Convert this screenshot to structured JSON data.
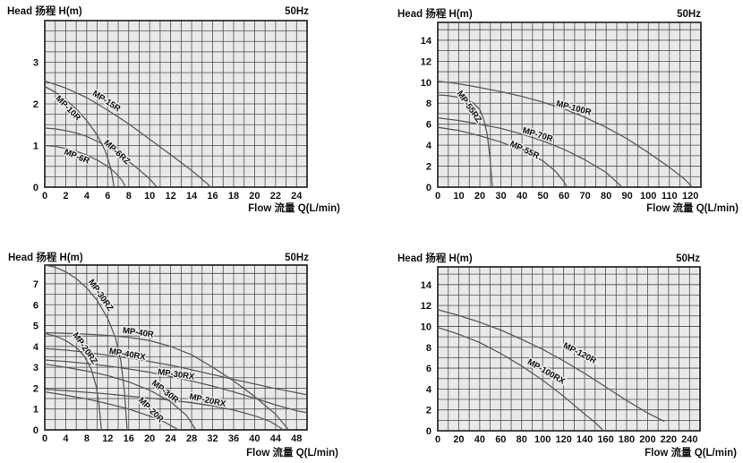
{
  "labels": {
    "head_title": "Head 扬程 H(m)",
    "frequency": "50Hz",
    "flow_title": "Flow 流量 Q(L/min)"
  },
  "colors": {
    "grid_bg": "#e9e9e9",
    "grid_line": "#4f4f4f",
    "border": "#1a1a1a",
    "curve": "#5a5a5a",
    "text": "#111111"
  },
  "chart_data": [
    {
      "type": "line",
      "title": "Head 扬程 H(m)",
      "freq_label": "50Hz",
      "xlabel": "Flow 流量 Q(L/min)",
      "ylabel": "H(m)",
      "xlim": [
        0,
        25
      ],
      "ylim": [
        0,
        4
      ],
      "x_minor": 1,
      "y_minor": 0.25,
      "x_ticks": [
        0,
        2,
        4,
        6,
        8,
        10,
        12,
        14,
        16,
        18,
        20,
        22,
        24
      ],
      "y_ticks": [
        0,
        1,
        2,
        3
      ],
      "grid": true,
      "legend_position": "on-curve",
      "series": [
        {
          "name": "MP-15R",
          "label_at": [
            4.5,
            2.22
          ],
          "label_angle": 33,
          "points": [
            [
              0,
              2.55
            ],
            [
              2,
              2.38
            ],
            [
              4,
              2.15
            ],
            [
              6,
              1.85
            ],
            [
              8,
              1.52
            ],
            [
              10,
              1.15
            ],
            [
              12,
              0.78
            ],
            [
              14,
              0.4
            ],
            [
              15.5,
              0.08
            ],
            [
              15.8,
              0
            ]
          ]
        },
        {
          "name": "MP-10R",
          "label_at": [
            1.0,
            2.12
          ],
          "label_angle": 45,
          "points": [
            [
              0,
              2.42
            ],
            [
              1,
              2.28
            ],
            [
              2,
              2.1
            ],
            [
              3,
              1.88
            ],
            [
              4,
              1.6
            ],
            [
              5,
              1.25
            ],
            [
              5.8,
              0.85
            ],
            [
              6.3,
              0.45
            ],
            [
              6.6,
              0
            ]
          ]
        },
        {
          "name": "MP-6RZ",
          "label_at": [
            5.6,
            1.05
          ],
          "label_angle": 42,
          "points": [
            [
              0,
              1.42
            ],
            [
              1,
              1.4
            ],
            [
              2,
              1.36
            ],
            [
              3,
              1.3
            ],
            [
              4,
              1.22
            ],
            [
              5,
              1.1
            ],
            [
              6,
              0.97
            ],
            [
              7,
              0.8
            ],
            [
              8,
              0.62
            ],
            [
              9,
              0.42
            ],
            [
              10,
              0.2
            ],
            [
              10.7,
              0
            ]
          ]
        },
        {
          "name": "MP-6R",
          "label_at": [
            1.8,
            0.8
          ],
          "label_angle": 22,
          "points": [
            [
              0,
              1.0
            ],
            [
              1,
              0.98
            ],
            [
              2,
              0.93
            ],
            [
              3,
              0.86
            ],
            [
              4,
              0.77
            ],
            [
              5,
              0.65
            ],
            [
              6,
              0.5
            ],
            [
              6.8,
              0.33
            ],
            [
              7.4,
              0.15
            ],
            [
              7.7,
              0
            ]
          ]
        }
      ]
    },
    {
      "type": "line",
      "title": "Head 扬程 H(m)",
      "freq_label": "50Hz",
      "xlabel": "Flow 流量 Q(L/min)",
      "ylabel": "H(m)",
      "xlim": [
        0,
        125
      ],
      "ylim": [
        0,
        15.7
      ],
      "x_minor": 5,
      "y_minor": 1,
      "x_ticks": [
        0,
        10,
        20,
        30,
        40,
        50,
        60,
        70,
        80,
        90,
        100,
        110,
        120
      ],
      "y_ticks": [
        0,
        2,
        4,
        6,
        8,
        10,
        12,
        14
      ],
      "grid": true,
      "legend_position": "on-curve",
      "series": [
        {
          "name": "MP-55RZ",
          "label_at": [
            9.0,
            8.95
          ],
          "label_angle": 55,
          "points": [
            [
              0,
              8.8
            ],
            [
              5,
              8.72
            ],
            [
              10,
              8.55
            ],
            [
              14,
              8.3
            ],
            [
              17,
              8.0
            ],
            [
              20,
              7.4
            ],
            [
              22,
              6.4
            ],
            [
              23.5,
              5.0
            ],
            [
              24.8,
              2.8
            ],
            [
              25.6,
              0.8
            ],
            [
              26,
              0
            ]
          ]
        },
        {
          "name": "MP-100R",
          "label_at": [
            56,
            7.75
          ],
          "label_angle": 15,
          "points": [
            [
              0,
              10.1
            ],
            [
              10,
              9.85
            ],
            [
              20,
              9.5
            ],
            [
              30,
              9.1
            ],
            [
              40,
              8.65
            ],
            [
              50,
              8.1
            ],
            [
              60,
              7.45
            ],
            [
              70,
              6.65
            ],
            [
              80,
              5.7
            ],
            [
              90,
              4.6
            ],
            [
              100,
              3.3
            ],
            [
              110,
              1.9
            ],
            [
              117,
              0.8
            ],
            [
              121,
              0
            ]
          ]
        },
        {
          "name": "MP-70R",
          "label_at": [
            40,
            5.2
          ],
          "label_angle": 17,
          "points": [
            [
              0,
              6.6
            ],
            [
              10,
              6.35
            ],
            [
              20,
              6.0
            ],
            [
              30,
              5.6
            ],
            [
              40,
              5.05
            ],
            [
              50,
              4.4
            ],
            [
              60,
              3.6
            ],
            [
              70,
              2.6
            ],
            [
              80,
              1.4
            ],
            [
              86,
              0.3
            ],
            [
              87.5,
              0
            ]
          ]
        },
        {
          "name": "MP-55R",
          "label_at": [
            34,
            3.95
          ],
          "label_angle": 25,
          "points": [
            [
              0,
              5.7
            ],
            [
              10,
              5.4
            ],
            [
              20,
              4.9
            ],
            [
              30,
              4.3
            ],
            [
              40,
              3.5
            ],
            [
              50,
              2.5
            ],
            [
              56,
              1.5
            ],
            [
              60,
              0.5
            ],
            [
              61.5,
              0
            ]
          ]
        }
      ]
    },
    {
      "type": "line",
      "title": "Head 扬程 H(m)",
      "freq_label": "50Hz",
      "xlabel": "Flow 流量 Q(L/min)",
      "ylabel": "H(m)",
      "xlim": [
        0,
        50
      ],
      "ylim": [
        0,
        7.9
      ],
      "x_minor": 2,
      "y_minor": 0.5,
      "x_ticks": [
        0,
        4,
        8,
        12,
        16,
        20,
        24,
        28,
        32,
        36,
        40,
        44,
        48
      ],
      "y_ticks": [
        0,
        1,
        2,
        3,
        4,
        5,
        6,
        7
      ],
      "grid": true,
      "legend_position": "on-curve",
      "series": [
        {
          "name": "MP-30RZ",
          "label_at": [
            8.3,
            7.1
          ],
          "label_angle": 55,
          "points": [
            [
              0,
              7.9
            ],
            [
              2,
              7.8
            ],
            [
              4,
              7.58
            ],
            [
              6,
              7.25
            ],
            [
              8,
              6.8
            ],
            [
              10,
              6.2
            ],
            [
              12,
              5.35
            ],
            [
              13.5,
              4.4
            ],
            [
              14.5,
              3.3
            ],
            [
              15.2,
              1.8
            ],
            [
              15.7,
              0
            ]
          ]
        },
        {
          "name": "MP-20RZ",
          "label_at": [
            5.3,
            4.55
          ],
          "label_angle": 55,
          "points": [
            [
              0,
              4.62
            ],
            [
              2,
              4.5
            ],
            [
              4,
              4.28
            ],
            [
              6,
              3.95
            ],
            [
              7.5,
              3.55
            ],
            [
              8.8,
              2.95
            ],
            [
              9.8,
              2.1
            ],
            [
              10.4,
              1.1
            ],
            [
              10.8,
              0
            ]
          ]
        },
        {
          "name": "MP-40R",
          "label_at": [
            14.8,
            4.65
          ],
          "label_angle": 8,
          "points": [
            [
              0,
              4.66
            ],
            [
              4,
              4.63
            ],
            [
              8,
              4.59
            ],
            [
              12,
              4.53
            ],
            [
              16,
              4.44
            ],
            [
              20,
              4.28
            ],
            [
              24,
              4.0
            ],
            [
              28,
              3.6
            ],
            [
              32,
              3.0
            ],
            [
              36,
              2.35
            ],
            [
              40,
              1.6
            ],
            [
              44,
              0.75
            ],
            [
              46.5,
              0
            ]
          ]
        },
        {
          "name": "MP-40RX",
          "label_at": [
            12.2,
            3.66
          ],
          "label_angle": 10,
          "points": [
            [
              0,
              3.9
            ],
            [
              4,
              3.82
            ],
            [
              8,
              3.72
            ],
            [
              12,
              3.58
            ],
            [
              16,
              3.44
            ],
            [
              20,
              3.28
            ],
            [
              24,
              3.1
            ],
            [
              28,
              2.88
            ],
            [
              32,
              2.65
            ],
            [
              36,
              2.42
            ],
            [
              40,
              2.2
            ],
            [
              44,
              1.98
            ],
            [
              48,
              1.78
            ],
            [
              50,
              1.68
            ]
          ]
        },
        {
          "name": "MP-30RX",
          "label_at": [
            21.5,
            2.66
          ],
          "label_angle": 8,
          "points": [
            [
              0,
              3.35
            ],
            [
              4,
              3.28
            ],
            [
              8,
              3.18
            ],
            [
              12,
              3.06
            ],
            [
              16,
              2.92
            ],
            [
              20,
              2.76
            ],
            [
              24,
              2.56
            ],
            [
              28,
              2.34
            ],
            [
              32,
              2.1
            ],
            [
              36,
              1.82
            ],
            [
              40,
              1.52
            ],
            [
              44,
              1.2
            ],
            [
              48,
              0.92
            ],
            [
              50,
              0.82
            ]
          ]
        },
        {
          "name": "MP-30R",
          "label_at": [
            20.3,
            2.2
          ],
          "label_angle": 38,
          "points": [
            [
              0,
              3.15
            ],
            [
              4,
              3.0
            ],
            [
              8,
              2.82
            ],
            [
              12,
              2.6
            ],
            [
              16,
              2.3
            ],
            [
              20,
              1.9
            ],
            [
              24,
              1.35
            ],
            [
              27,
              0.7
            ],
            [
              28.8,
              0
            ]
          ]
        },
        {
          "name": "MP-20RX",
          "label_at": [
            27.5,
            1.48
          ],
          "label_angle": 12,
          "points": [
            [
              0,
              1.95
            ],
            [
              4,
              1.88
            ],
            [
              8,
              1.8
            ],
            [
              12,
              1.72
            ],
            [
              16,
              1.62
            ],
            [
              20,
              1.52
            ],
            [
              24,
              1.42
            ],
            [
              28,
              1.3
            ],
            [
              32,
              1.15
            ],
            [
              36,
              0.95
            ],
            [
              40,
              0.68
            ],
            [
              43,
              0.4
            ],
            [
              45.5,
              0
            ]
          ]
        },
        {
          "name": "MP-20R",
          "label_at": [
            17.8,
            1.4
          ],
          "label_angle": 45,
          "points": [
            [
              0,
              1.82
            ],
            [
              4,
              1.66
            ],
            [
              8,
              1.48
            ],
            [
              12,
              1.26
            ],
            [
              16,
              1.0
            ],
            [
              20,
              0.66
            ],
            [
              23,
              0.35
            ],
            [
              25.5,
              0
            ]
          ]
        }
      ]
    },
    {
      "type": "line",
      "title": "Head 扬程 H(m)",
      "freq_label": "50Hz",
      "xlabel": "Flow 流量 Q(L/min)",
      "ylabel": "H(m)",
      "xlim": [
        0,
        250
      ],
      "ylim": [
        0,
        15.7
      ],
      "x_minor": 10,
      "y_minor": 1,
      "x_ticks": [
        0,
        20,
        40,
        60,
        80,
        100,
        120,
        140,
        160,
        180,
        200,
        220,
        240
      ],
      "y_ticks": [
        0,
        2,
        4,
        6,
        8,
        10,
        12,
        14
      ],
      "grid": true,
      "legend_position": "on-curve",
      "series": [
        {
          "name": "MP-120R",
          "label_at": [
            119,
            8.0
          ],
          "label_angle": 27,
          "points": [
            [
              0,
              11.6
            ],
            [
              20,
              11.05
            ],
            [
              40,
              10.4
            ],
            [
              60,
              9.65
            ],
            [
              80,
              8.75
            ],
            [
              100,
              7.8
            ],
            [
              120,
              6.7
            ],
            [
              140,
              5.5
            ],
            [
              160,
              4.2
            ],
            [
              180,
              2.9
            ],
            [
              200,
              1.7
            ],
            [
              210,
              1.2
            ],
            [
              216,
              0.9
            ]
          ]
        },
        {
          "name": "MP-100RX",
          "label_at": [
            85,
            6.45
          ],
          "label_angle": 30,
          "points": [
            [
              0,
              9.9
            ],
            [
              20,
              9.25
            ],
            [
              40,
              8.45
            ],
            [
              60,
              7.4
            ],
            [
              80,
              6.2
            ],
            [
              100,
              4.85
            ],
            [
              120,
              3.3
            ],
            [
              140,
              1.6
            ],
            [
              150,
              0.8
            ],
            [
              158,
              0
            ]
          ]
        }
      ]
    }
  ]
}
